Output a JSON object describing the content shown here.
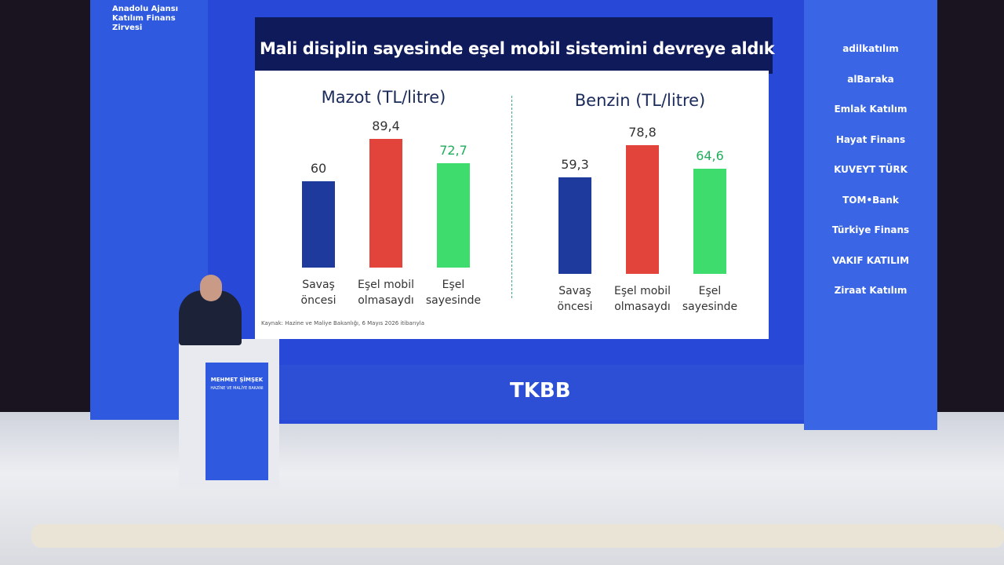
{
  "event": {
    "title": "Anadolu Ajansı Katılım Finans Zirvesi"
  },
  "slide": {
    "title": "Mali disiplin sayesinde eşel mobil sistemini devreye aldık",
    "source": "Kaynak: Hazine ve Maliye Bakanlığı, 6 Mayıs 2026 itibarıyla"
  },
  "chart_data": [
    {
      "type": "bar",
      "title": "Mazot (TL/litre)",
      "categories": [
        "Savaş öncesi",
        "Eşel mobil olmasaydı",
        "Eşel sayesinde"
      ],
      "values": [
        60,
        89.4,
        72.7
      ],
      "value_labels": [
        "60",
        "89,4",
        "72,7"
      ],
      "colors": [
        "#1e3a9c",
        "#e2433a",
        "#3ddc6c"
      ]
    },
    {
      "type": "bar",
      "title": "Benzin (TL/litre)",
      "categories": [
        "Savaş öncesi",
        "Eşel mobil olmasaydı",
        "Eşel sayesinde"
      ],
      "values": [
        59.3,
        78.8,
        64.6
      ],
      "value_labels": [
        "59,3",
        "78,8",
        "64,6"
      ],
      "colors": [
        "#1e3a9c",
        "#e2433a",
        "#3ddc6c"
      ]
    }
  ],
  "sponsors": [
    "adilkatılım",
    "alBaraka",
    "Emlak Katılım",
    "Hayat Finans",
    "KUVEYT TÜRK",
    "TOM•Bank",
    "Türkiye Finans",
    "VAKIF KATILIM",
    "Ziraat Katılım"
  ],
  "podium": {
    "name": "MEHMET ŞİMŞEK",
    "role": "HAZİNE VE MALİYE BAKANI"
  },
  "stage": {
    "logo": "TKBB"
  }
}
